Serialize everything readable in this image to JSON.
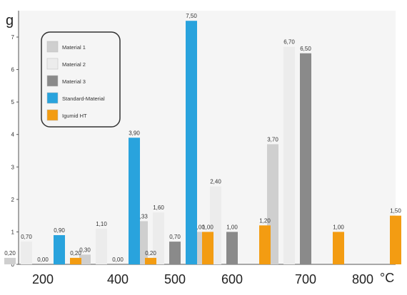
{
  "chart_data": {
    "type": "bar",
    "y_unit": "g",
    "x_unit": "°C",
    "categories": [
      "200",
      "400",
      "500",
      "600",
      "700",
      "800"
    ],
    "ylim": [
      0,
      7
    ],
    "yticks": [
      "0",
      "1",
      "2",
      "3",
      "4",
      "5",
      "6",
      "7"
    ],
    "grid": false,
    "legend_position": "top-left",
    "series": [
      {
        "name": "Material 1",
        "color": "#cfcfcf",
        "values": [
          0.2,
          0.3,
          1.33,
          1.0,
          3.7,
          null
        ],
        "labels": [
          "0,20",
          "0,30",
          "1,33",
          "1,00",
          "3,70",
          ""
        ]
      },
      {
        "name": "Material 2",
        "color": "#ececec",
        "values": [
          0.7,
          1.1,
          1.6,
          2.4,
          6.7,
          null
        ],
        "labels": [
          "0,70",
          "1,10",
          "1,60",
          "2,40",
          "6,70",
          ""
        ]
      },
      {
        "name": "Material 3",
        "color": "#8a8a8a",
        "values": [
          null,
          null,
          0.7,
          1.0,
          6.5,
          null
        ],
        "labels": [
          "",
          "",
          "0,70",
          "1,00",
          "6,50",
          ""
        ]
      },
      {
        "name": "Standard-Material",
        "color": "#29a3dd",
        "values": [
          0.9,
          3.9,
          7.5,
          null,
          null,
          null
        ],
        "labels": [
          "0,90",
          "3,90",
          "7,50",
          "",
          "",
          ""
        ]
      },
      {
        "name": "Igumid HT",
        "color": "#f39c12",
        "values": [
          0.2,
          0.2,
          1.0,
          1.2,
          1.0,
          1.5
        ],
        "labels": [
          "0,20",
          "0,20",
          "1,00",
          "1,20",
          "1,00",
          "1,50"
        ]
      }
    ],
    "extra_labels": [
      {
        "category": "200",
        "text": "0,00"
      },
      {
        "category": "400",
        "text": "0,00"
      }
    ]
  }
}
